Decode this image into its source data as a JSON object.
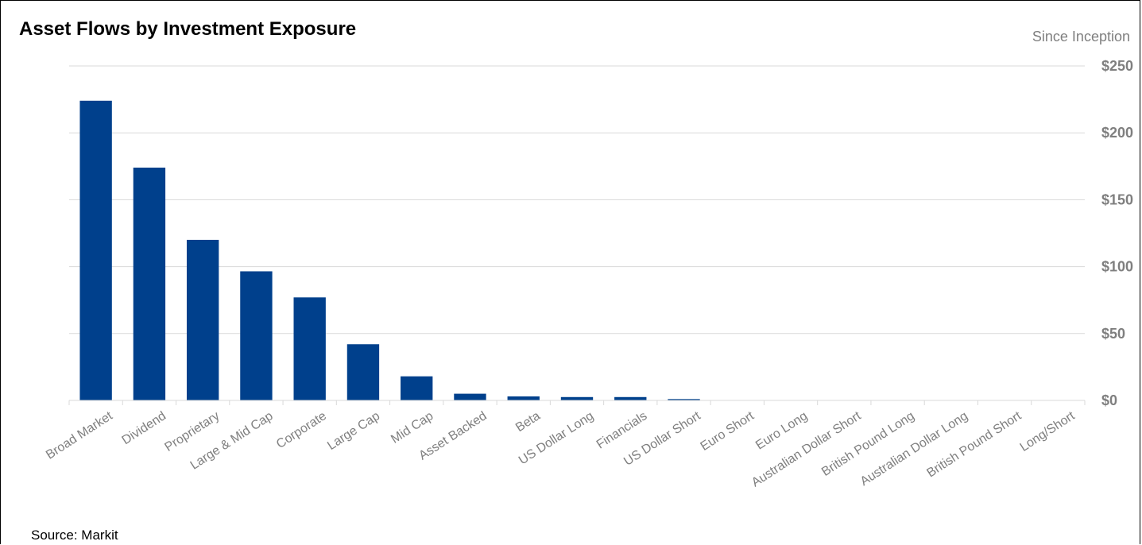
{
  "header": {
    "title": "Asset Flows by Investment Exposure",
    "subtitle": "Since Inception"
  },
  "footer": {
    "source": "Source: Markit"
  },
  "colors": {
    "bar": "#00408c",
    "grid": "#d9d9d9",
    "axis_text": "#7f7f7f"
  },
  "chart_data": {
    "type": "bar",
    "title": "Asset Flows by Investment Exposure",
    "subtitle": "Since Inception",
    "xlabel": "",
    "ylabel": "",
    "categories": [
      "Broad Market",
      "Dividend",
      "Proprietary",
      "Large & Mid Cap",
      "Corporate",
      "Large Cap",
      "Mid Cap",
      "Asset Backed",
      "Beta",
      "US Dollar Long",
      "Financials",
      "US Dollar Short",
      "Euro Short",
      "Euro Long",
      "Australian Dollar Short",
      "British Pound Long",
      "Australian Dollar Long",
      "British Pound Short",
      "Long/Short"
    ],
    "values": [
      224,
      174,
      120,
      96.5,
      77,
      42,
      18,
      5,
      3,
      2.5,
      2.5,
      1,
      0.2,
      0.2,
      0.1,
      0.1,
      0.1,
      0.1,
      0.1
    ],
    "ylim": [
      0,
      250
    ],
    "yticks": [
      0,
      50,
      100,
      150,
      200,
      250
    ],
    "ytick_labels": [
      "$0",
      "$50",
      "$100",
      "$150",
      "$200",
      "$250"
    ],
    "y_axis_side": "right",
    "grid": true,
    "legend": "none"
  }
}
